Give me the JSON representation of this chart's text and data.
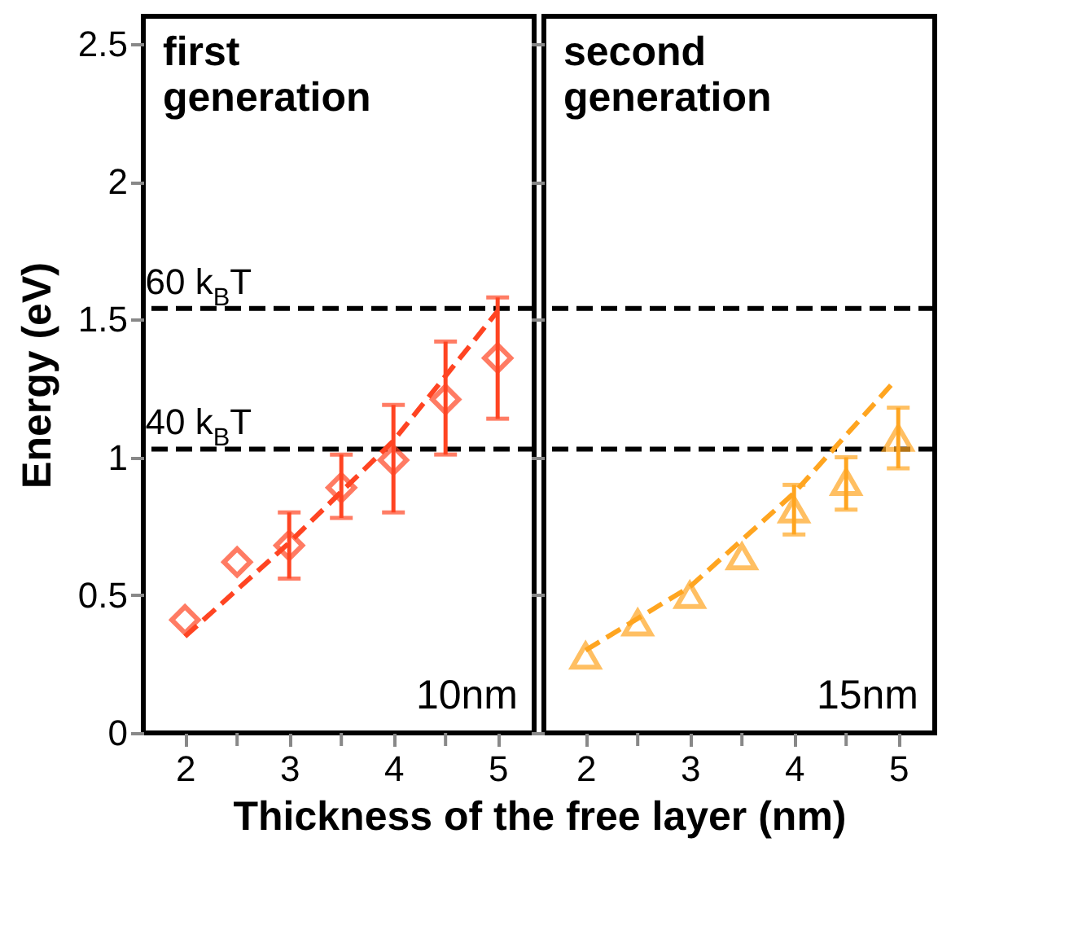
{
  "chart_data": [
    {
      "type": "scatter",
      "ylabel": "Energy (eV)",
      "xlabel": "Thickness of the free layer (nm)",
      "annotations": [
        "first generation",
        "10nm"
      ],
      "xlim": [
        1.6,
        5.35
      ],
      "ylim": [
        0,
        2.6
      ],
      "xticks": [
        2,
        {
          "value": 2.5,
          "label": null
        },
        3,
        {
          "value": 3.5,
          "label": null
        },
        4,
        {
          "value": 4.5,
          "label": null
        },
        5
      ],
      "yticks": [
        0,
        0.5,
        1,
        1.5,
        2,
        2.5
      ],
      "ref_lines": [
        {
          "axis": "y",
          "value": 1.54,
          "label": "60 k$_{B}$T",
          "color": "#000000",
          "line_style": "dashed"
        },
        {
          "axis": "y",
          "value": 1.03,
          "label": "40 k$_{B}$T",
          "color": "#000000",
          "line_style": "dashed"
        }
      ],
      "series": [
        {
          "color": "#ff4422",
          "marker": "diamond",
          "x": [
            2,
            2.5,
            3,
            3.5,
            4,
            4.5,
            5
          ],
          "values": [
            0.41,
            0.62,
            0.68,
            0.89,
            0.99,
            1.21,
            1.36
          ],
          "errors": [
            null,
            null,
            [
              0.56,
              0.8
            ],
            [
              0.78,
              1.01
            ],
            [
              0.8,
              1.19
            ],
            [
              1.01,
              1.42
            ],
            [
              1.14,
              1.58
            ]
          ]
        },
        {
          "type": "line",
          "color": "#ff4422",
          "line_style": "dashed",
          "x": [
            2,
            3,
            4,
            5
          ],
          "values": [
            0.35,
            0.69,
            1.06,
            1.53
          ]
        }
      ]
    },
    {
      "type": "scatter",
      "annotations": [
        "second generation",
        "15nm"
      ],
      "tick_labels": "x",
      "xlim": [
        1.6,
        5.35
      ],
      "ylim": [
        0,
        2.6
      ],
      "xticks": [
        2,
        {
          "value": 2.5,
          "label": null
        },
        3,
        {
          "value": 3.5,
          "label": null
        },
        4,
        {
          "value": 4.5,
          "label": null
        },
        5
      ],
      "yticks": [
        0,
        0.5,
        1,
        1.5,
        2,
        2.5
      ],
      "ref_lines": [
        {
          "axis": "y",
          "value": 1.54,
          "color": "#000000",
          "line_style": "dashed"
        },
        {
          "axis": "y",
          "value": 1.03,
          "color": "#000000",
          "line_style": "dashed"
        }
      ],
      "series": [
        {
          "color": "#ffa520",
          "marker": "triangle",
          "x": [
            2,
            2.5,
            3,
            3.5,
            4,
            4.5,
            5
          ],
          "values": [
            0.28,
            0.4,
            0.5,
            0.64,
            0.81,
            0.91,
            1.07
          ],
          "errors": [
            null,
            null,
            null,
            null,
            [
              0.72,
              0.9
            ],
            [
              0.81,
              1.0
            ],
            [
              0.96,
              1.18
            ]
          ]
        },
        {
          "type": "line",
          "color": "#ffa520",
          "line_style": "dashed",
          "x": [
            2,
            3,
            4,
            4.95
          ],
          "values": [
            0.3,
            0.53,
            0.87,
            1.27
          ]
        }
      ]
    }
  ]
}
